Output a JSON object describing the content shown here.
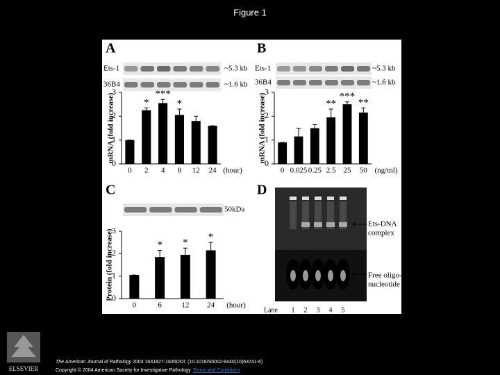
{
  "title": "Figure 1",
  "chart_data": [
    {
      "type": "bar",
      "panel": "A",
      "categories": [
        "0",
        "2",
        "4",
        "8",
        "12",
        "24"
      ],
      "values": [
        1.0,
        2.25,
        2.55,
        2.05,
        1.8,
        1.6
      ],
      "errors": [
        0,
        0.1,
        0.15,
        0.25,
        0.2,
        0
      ],
      "annotations": [
        null,
        "*",
        "***",
        "*",
        null,
        null
      ],
      "xlabel": "(hour)",
      "ylabel": "mRNA (fold increase)",
      "ylim": [
        0,
        3
      ],
      "yticks": [
        0,
        1,
        2,
        3
      ],
      "color": "#000000",
      "blot": {
        "rows": [
          "Ets-1",
          "36B4"
        ],
        "sizes": [
          "~5.3 kb",
          "~1.6 kb"
        ]
      }
    },
    {
      "type": "bar",
      "panel": "B",
      "categories": [
        "0",
        "0.025",
        "0.25",
        "2.5",
        "25",
        "50"
      ],
      "values": [
        0.9,
        1.15,
        1.5,
        1.95,
        2.5,
        2.15
      ],
      "errors": [
        0,
        0.35,
        0.15,
        0.35,
        0.1,
        0.2
      ],
      "annotations": [
        null,
        null,
        null,
        "**",
        "***",
        "**"
      ],
      "xlabel": "(ng/ml)",
      "ylabel": "mRNA (fold increase)",
      "ylim": [
        0,
        3
      ],
      "yticks": [
        0,
        1,
        2,
        3
      ],
      "color": "#000000",
      "blot": {
        "rows": [
          "Ets-1",
          "36B4"
        ],
        "sizes": [
          "~5.3 kb",
          "~1.6 kb"
        ]
      }
    },
    {
      "type": "bar",
      "panel": "C",
      "categories": [
        "0",
        "6",
        "12",
        "24"
      ],
      "values": [
        1.05,
        1.85,
        1.95,
        2.15
      ],
      "errors": [
        0,
        0.3,
        0.3,
        0.35
      ],
      "annotations": [
        null,
        "*",
        "*",
        "*"
      ],
      "xlabel": "(hour)",
      "ylabel": "Protein (fold increase)",
      "ylim": [
        0,
        3
      ],
      "yticks": [
        0,
        1,
        2,
        3
      ],
      "color": "#000000",
      "blot": {
        "rows": [],
        "sizes": [
          "50kDa"
        ]
      }
    }
  ],
  "panel_d": {
    "panel": "D",
    "complex": [
      "Ets-DNA",
      "complex"
    ],
    "free": [
      "Free oligo-",
      "nucleotide"
    ],
    "lane_label": "Lane",
    "lanes": [
      "1",
      "2",
      "3",
      "4",
      "5"
    ]
  },
  "footer": {
    "journal": "The American Journal of Pathology",
    "citation": " 2004 1641827-1835DOI: (10.1016/S0002-9440(10)63741-6)",
    "copyright": "Copyright © 2004 American Society for Investigative Pathology",
    "terms": "Terms and Conditions",
    "publisher": "ELSEVIER"
  }
}
